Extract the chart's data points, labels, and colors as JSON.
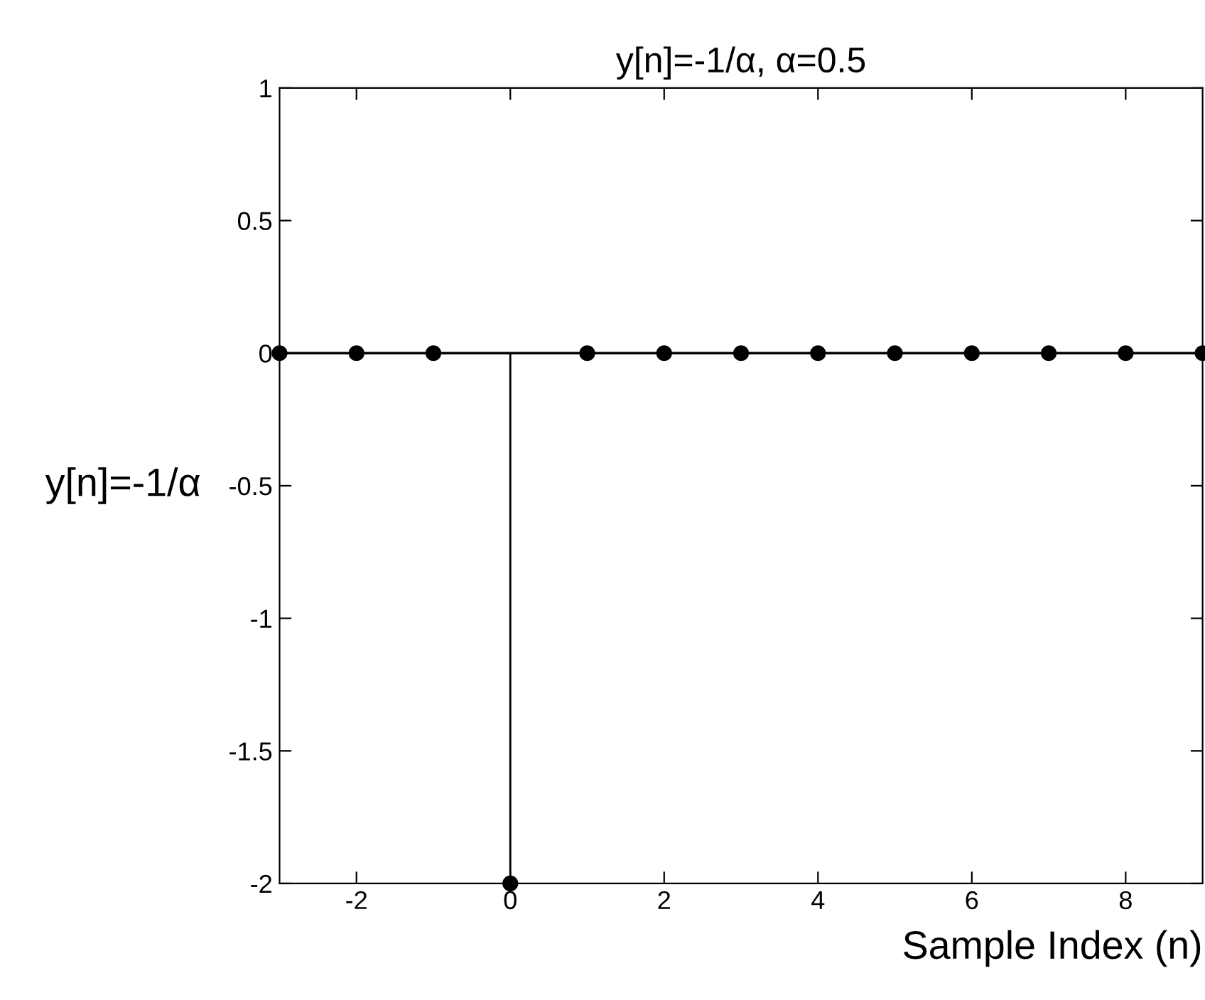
{
  "chart_data": {
    "type": "lollipop",
    "title": "y[n]=-1/α, α=0.5",
    "xlabel": "Sample Index (n)",
    "ylabel": "y[n]=-1/α",
    "x": [
      -3,
      -2,
      -1,
      0,
      1,
      2,
      3,
      4,
      5,
      6,
      7,
      8,
      9
    ],
    "values": [
      0,
      0,
      0,
      -2,
      0,
      0,
      0,
      0,
      0,
      0,
      0,
      0,
      0
    ],
    "color": "#000000",
    "marker": "circle",
    "xlim": [
      -3,
      9
    ],
    "xticks": [
      -2,
      0,
      2,
      4,
      6,
      8
    ],
    "ylim": [
      -2,
      1
    ],
    "yticks": [
      -2,
      -1.5,
      -1,
      -0.5,
      0,
      0.5,
      1
    ]
  }
}
